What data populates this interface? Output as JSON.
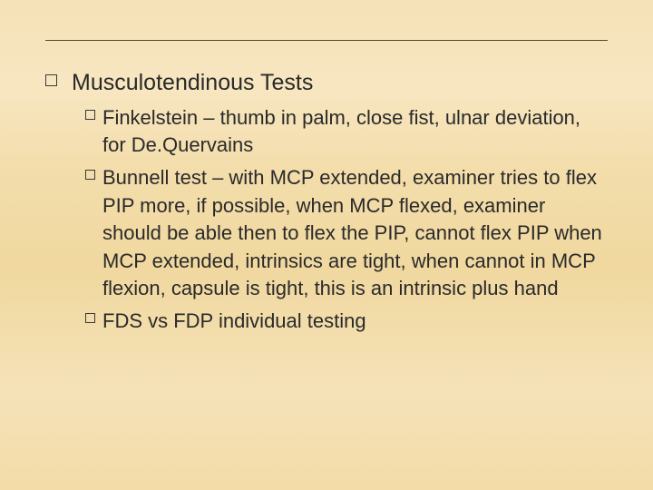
{
  "background": {
    "start_color": "#f5e2b8",
    "mid_color": "#f0d89f",
    "end_color": "#f3dca8"
  },
  "underline_color": "#5a4a2a",
  "text_color": "#2a2a2a",
  "heading": {
    "text": "Musculotendinous Tests",
    "fontsize": 25
  },
  "sub_fontsize": 22,
  "items": [
    {
      "text": "Finkelstein – thumb in palm, close fist, ulnar deviation, for De.Quervains"
    },
    {
      "text": "Bunnell test – with MCP extended, examiner tries to flex PIP more, if possible, when MCP flexed, examiner  should be able then to  flex the PIP, cannot flex  PIP when MCP extended, intrinsics are tight, when cannot in MCP  flexion, capsule is tight, this is an intrinsic plus hand"
    },
    {
      "text": "FDS vs FDP individual testing"
    }
  ]
}
